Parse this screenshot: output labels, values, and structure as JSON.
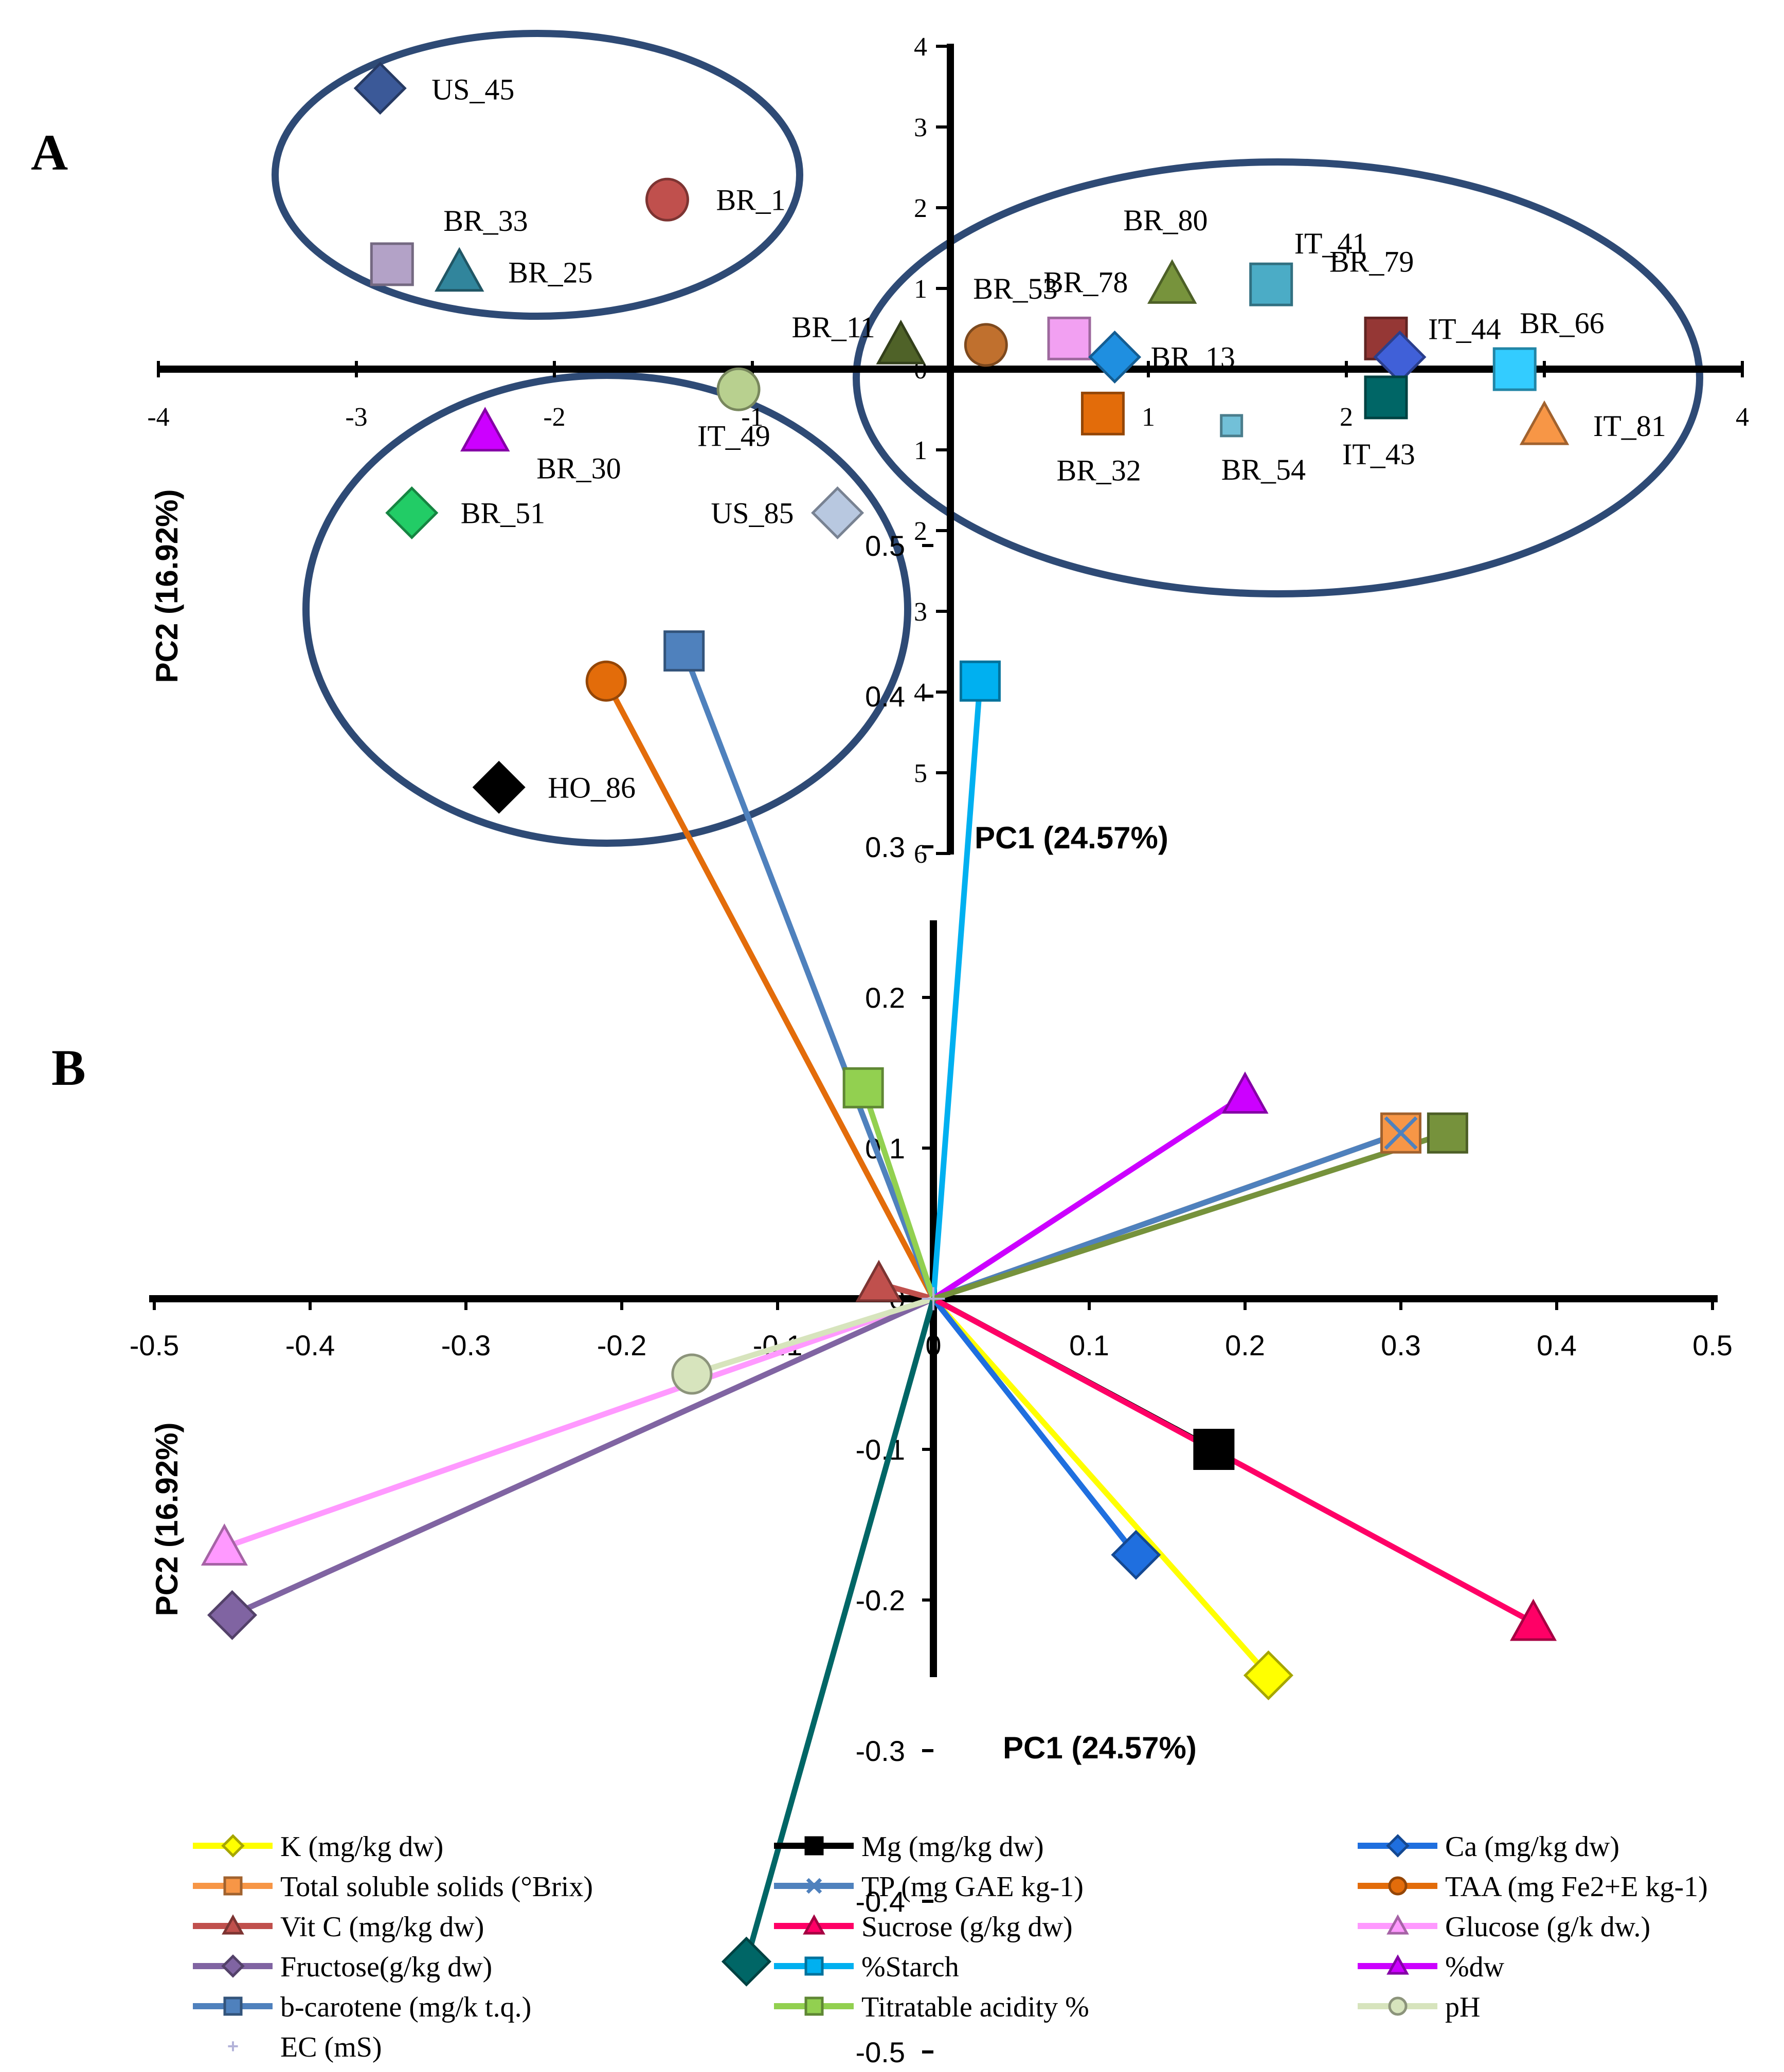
{
  "panelA": {
    "panel_label": "A",
    "xlabel": "PC1 (24.57%)",
    "ylabel": "PC2 (16.92%)"
  },
  "panelB": {
    "panel_label": "B",
    "xlabel": "PC1 (24.57%)",
    "ylabel": "PC2 (16.92%)"
  },
  "chart_data": [
    {
      "type": "scatter",
      "panel": "A",
      "xlabel": "PC1 (24.57%)",
      "ylabel": "PC2 (16.92%)",
      "xlim": [
        -4,
        4
      ],
      "ylim": [
        -6,
        4
      ],
      "x_ticks": [
        -4,
        -3,
        -2,
        -1,
        0,
        1,
        2,
        3,
        4
      ],
      "y_ticks": [
        4,
        3,
        2,
        1,
        0,
        -1,
        -2,
        -3,
        -4,
        -5,
        -6
      ],
      "y_tick_labels": [
        "4",
        "3",
        "2",
        "1",
        "0",
        "1",
        "2",
        "3",
        "4",
        "5",
        "6"
      ],
      "grid": false,
      "points": [
        {
          "label": "US_45",
          "x": -2.88,
          "y": 3.48,
          "shape": "diamond",
          "color": "#3b5998"
        },
        {
          "label": "BR_1",
          "x": -1.43,
          "y": 2.1,
          "shape": "circle",
          "color": "#c0504d"
        },
        {
          "label": "BR_33",
          "x": -2.82,
          "y": 1.3,
          "shape": "square",
          "color": "#b3a2c7"
        },
        {
          "label": "BR_25",
          "x": -2.48,
          "y": 1.2,
          "shape": "triangle",
          "color": "#31859c"
        },
        {
          "label": "BR_11",
          "x": -0.25,
          "y": 0.3,
          "shape": "triangle",
          "color": "#4f6228"
        },
        {
          "label": "BR_53",
          "x": 0.18,
          "y": 0.3,
          "shape": "circle",
          "color": "#c0702e"
        },
        {
          "label": "BR_78",
          "x": 0.6,
          "y": 0.38,
          "shape": "square",
          "color": "#f2a0f2"
        },
        {
          "label": "BR_13",
          "x": 0.83,
          "y": 0.15,
          "shape": "diamond",
          "color": "#1f8fe0"
        },
        {
          "label": "BR_80",
          "x": 1.12,
          "y": 1.05,
          "shape": "triangle",
          "color": "#77933c"
        },
        {
          "label": "IT_41",
          "x": 1.62,
          "y": 1.05,
          "shape": "square",
          "color": "#4bacc6"
        },
        {
          "label": "BR_79",
          "x": 2.2,
          "y": 0.38,
          "shape": "square",
          "color": "#953735"
        },
        {
          "label": "IT_44",
          "x": 2.27,
          "y": 0.15,
          "shape": "diamond",
          "color": "#4060d8"
        },
        {
          "label": "BR_66",
          "x": 2.85,
          "y": 0.0,
          "shape": "square",
          "color": "#33ccff"
        },
        {
          "label": "BR_32",
          "x": 0.77,
          "y": -0.55,
          "shape": "square",
          "color": "#e36c0a"
        },
        {
          "label": "BR_54",
          "x": 1.42,
          "y": -0.7,
          "shape": "square",
          "color": "#72c0d8"
        },
        {
          "label": "IT_43",
          "x": 2.2,
          "y": -0.35,
          "shape": "square",
          "color": "#006666"
        },
        {
          "label": "IT_81",
          "x": 3.0,
          "y": -0.7,
          "shape": "triangle",
          "color": "#f79646"
        },
        {
          "label": "IT_49",
          "x": -1.07,
          "y": -0.25,
          "shape": "circle",
          "color": "#b8d08f"
        },
        {
          "label": "BR_30",
          "x": -2.35,
          "y": -0.78,
          "shape": "triangle",
          "color": "#cc00ff"
        },
        {
          "label": "BR_51",
          "x": -2.72,
          "y": -1.78,
          "shape": "diamond",
          "color": "#22cc66"
        },
        {
          "label": "US_85",
          "x": -0.57,
          "y": -1.78,
          "shape": "diamond",
          "color": "#b8c8e0"
        },
        {
          "label": "HO_86",
          "x": -2.28,
          "y": -5.18,
          "shape": "diamond",
          "color": "#000000"
        }
      ]
    },
    {
      "type": "line",
      "panel": "B",
      "description": "PCA loading vectors drawn from origin",
      "xlabel": "PC1 (24.57%)",
      "ylabel": "PC2 (16.92%)",
      "xlim": [
        -0.5,
        0.5
      ],
      "ylim": [
        -0.5,
        0.5
      ],
      "x_ticks": [
        -0.5,
        -0.4,
        -0.3,
        -0.2,
        -0.1,
        0,
        0.1,
        0.2,
        0.3,
        0.4,
        0.5
      ],
      "x_tick_labels": [
        "-0.5",
        "-0.4",
        "-0.3",
        "-0.2",
        "-0.1",
        "0",
        "0.1",
        "0.2",
        "0.3",
        "0.4",
        "0.5"
      ],
      "y_ticks": [
        0.5,
        0.4,
        0.3,
        0.2,
        0.1,
        0,
        -0.1,
        -0.2,
        -0.3,
        -0.4,
        -0.5
      ],
      "y_tick_labels": [
        "0.5",
        "0.4",
        "0.3",
        "0.2",
        "0.1",
        "0",
        "-0.1",
        "-0.2",
        "-0.3",
        "-0.4",
        "-0.5"
      ],
      "grid": false,
      "legend_position": "bottom",
      "series": [
        {
          "name": "K (mg/kg dw)",
          "x": 0.215,
          "y": -0.25,
          "line_color": "#ffff00",
          "marker": "diamond",
          "marker_color": "#ffff00"
        },
        {
          "name": "Mg (mg/kg dw)",
          "x": 0.18,
          "y": -0.1,
          "line_color": "#000000",
          "marker": "square",
          "marker_color": "#000000"
        },
        {
          "name": "Ca (mg/kg dw)",
          "x": 0.13,
          "y": -0.17,
          "line_color": "#1f6fdf",
          "marker": "diamond",
          "marker_color": "#1f6fdf"
        },
        {
          "name": "Total soluble solids (°Brix)",
          "x": 0.3,
          "y": 0.11,
          "line_color": "#f79646",
          "marker": "square",
          "marker_color": "#f79646"
        },
        {
          "name": "TP   (mg GAE kg-1)",
          "x": 0.3,
          "y": 0.11,
          "line_color": "#4f81bd",
          "marker": "x",
          "marker_color": "#4f81bd"
        },
        {
          "name": "TAA (mg Fe2+E kg-1)",
          "x": -0.21,
          "y": 0.41,
          "line_color": "#e36c0a",
          "marker": "circle",
          "marker_color": "#e36c0a"
        },
        {
          "name": "Vit C (mg/kg dw)",
          "x": -0.035,
          "y": 0.01,
          "line_color": "#c0504d",
          "marker": "triangle",
          "marker_color": "#c0504d"
        },
        {
          "name": "Sucrose (g/kg dw)",
          "x": 0.385,
          "y": -0.215,
          "line_color": "#ff0066",
          "marker": "triangle",
          "marker_color": "#ff0066"
        },
        {
          "name": "Glucose (g/k dw.)",
          "x": -0.455,
          "y": -0.165,
          "line_color": "#ff99ff",
          "marker": "triangle",
          "marker_color": "#ff99ff"
        },
        {
          "name": "Fructose(g/kg dw)",
          "x": -0.45,
          "y": -0.21,
          "line_color": "#8064a2",
          "marker": "diamond",
          "marker_color": "#8064a2"
        },
        {
          "name": "%Starch",
          "x": 0.03,
          "y": 0.41,
          "line_color": "#00b0f0",
          "marker": "square",
          "marker_color": "#00b0f0"
        },
        {
          "name": "%dw",
          "x": 0.2,
          "y": 0.135,
          "line_color": "#cc00ff",
          "marker": "triangle",
          "marker_color": "#cc00ff"
        },
        {
          "name": "b-carotene (mg/k t.q.)",
          "x": -0.16,
          "y": 0.43,
          "line_color": "#4f81bd",
          "marker": "square",
          "marker_color": "#4f81bd"
        },
        {
          "name": "Titratable acidity %",
          "x": -0.045,
          "y": 0.14,
          "line_color": "#92d050",
          "marker": "square",
          "marker_color": "#92d050"
        },
        {
          "name": "pH",
          "x": -0.155,
          "y": -0.05,
          "line_color": "#d7e4bd",
          "marker": "circle",
          "marker_color": "#d7e4bd"
        },
        {
          "name": "EC (mS)",
          "x": 0.0,
          "y": 0.0,
          "line_color": "#b3b3d9",
          "marker": "plus",
          "marker_color": "#b3b3d9"
        },
        {
          "name": "",
          "x": -0.12,
          "y": -0.44,
          "line_color": "#006666",
          "marker": "diamond",
          "marker_color": "#006666"
        },
        {
          "name": "",
          "x": 0.33,
          "y": 0.11,
          "line_color": "#76923c",
          "marker": "square",
          "marker_color": "#76923c"
        }
      ]
    }
  ]
}
